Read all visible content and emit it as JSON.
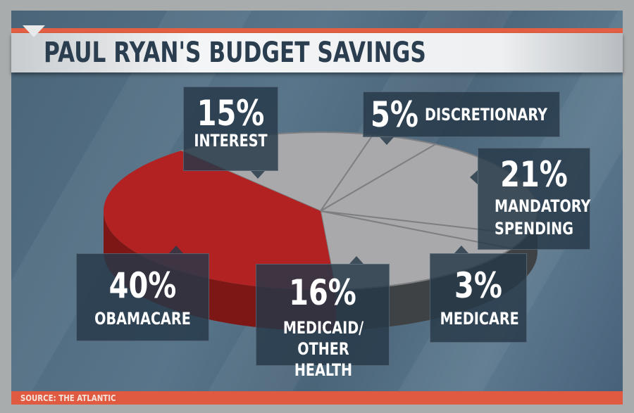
{
  "title": "PAUL RYAN'S BUDGET SAVINGS",
  "source": "SOURCE: THE ATLANTIC",
  "colors": {
    "highlight": "#b22222",
    "slice": "#a9a9ab",
    "accent": "#e35f44",
    "background": "#4f6a7f"
  },
  "chart_data": {
    "type": "pie",
    "title": "PAUL RYAN'S BUDGET SAVINGS",
    "style": "3d",
    "slices": [
      {
        "label": "INTEREST",
        "value": 15,
        "display": "15%"
      },
      {
        "label": "DISCRETIONARY",
        "value": 5,
        "display": "5%"
      },
      {
        "label": "MANDATORY SPENDING",
        "value": 21,
        "display": "21%"
      },
      {
        "label": "MEDICARE",
        "value": 3,
        "display": "3%"
      },
      {
        "label": "MEDICAID/ OTHER HEALTH",
        "value": 16,
        "display": "16%"
      },
      {
        "label": "OBAMACARE",
        "value": 40,
        "display": "40%",
        "highlighted": true
      }
    ]
  }
}
